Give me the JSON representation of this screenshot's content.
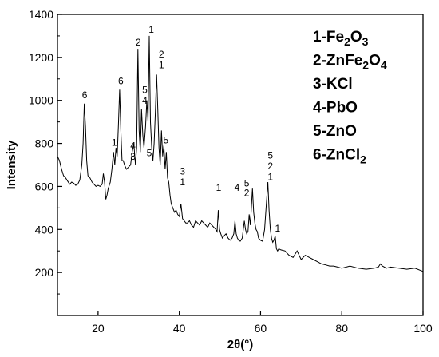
{
  "chart_data": {
    "type": "line",
    "xlabel": "2θ(°)",
    "ylabel": "Intensity",
    "xlim": [
      10,
      100
    ],
    "ylim": [
      0,
      1400
    ],
    "xticks": [
      20,
      40,
      60,
      80,
      100
    ],
    "yticks": [
      200,
      400,
      600,
      800,
      1000,
      1200,
      1400
    ],
    "grid": false,
    "legend_position": "top-right",
    "legend": [
      {
        "num": "1-",
        "base": "Fe",
        "sub1": "2",
        "mid": "O",
        "sub2": "3"
      },
      {
        "num": "2-",
        "base": "ZnFe",
        "sub1": "2",
        "mid": "O",
        "sub2": "4"
      },
      {
        "num": "3-",
        "base": "KCl",
        "sub1": "",
        "mid": "",
        "sub2": ""
      },
      {
        "num": "4-",
        "base": "PbO",
        "sub1": "",
        "mid": "",
        "sub2": ""
      },
      {
        "num": "5-",
        "base": "ZnO",
        "sub1": "",
        "mid": "",
        "sub2": ""
      },
      {
        "num": "6-",
        "base": "ZnCl",
        "sub1": "2",
        "mid": "",
        "sub2": ""
      }
    ],
    "series": [
      {
        "x": [
          10,
          10.5,
          11,
          11.5,
          12,
          12.5,
          13,
          13.5,
          14,
          14.5,
          15,
          15.5,
          16,
          16.3,
          16.6,
          16.9,
          17.2,
          17.5,
          18,
          18.5,
          19,
          19.5,
          20,
          20.5,
          21,
          21.3,
          21.6,
          21.9,
          22.2,
          22.5,
          23,
          23.4,
          23.8,
          24.1,
          24.4,
          24.7,
          25,
          25.3,
          25.6,
          25.9,
          26.2,
          26.5,
          27,
          27.5,
          28,
          28.4,
          28.8,
          29.2,
          29.5,
          29.8,
          30.1,
          30.4,
          30.7,
          31,
          31.3,
          31.7,
          32,
          32.3,
          32.6,
          32.9,
          33.2,
          33.5,
          33.8,
          34.1,
          34.4,
          34.7,
          35,
          35.3,
          35.6,
          35.9,
          36.2,
          36.5,
          36.8,
          37.1,
          37.4,
          37.7,
          38,
          38.4,
          38.8,
          39.2,
          39.6,
          40,
          40.4,
          40.8,
          41.2,
          41.6,
          42,
          42.5,
          43,
          43.5,
          44,
          44.5,
          45,
          45.5,
          46,
          46.5,
          47,
          47.5,
          48,
          48.5,
          49,
          49.3,
          49.6,
          49.9,
          50.2,
          50.6,
          51,
          51.5,
          52,
          52.5,
          53,
          53.4,
          53.7,
          54,
          54.3,
          54.6,
          55,
          55.5,
          56,
          56.3,
          56.6,
          56.9,
          57.2,
          57.5,
          58,
          58.3,
          58.6,
          58.9,
          59.2,
          59.5,
          60,
          60.5,
          61,
          61.5,
          61.8,
          62.1,
          62.4,
          62.7,
          63,
          63.3,
          63.6,
          63.9,
          64.2,
          64.5,
          65,
          66,
          67,
          68,
          69,
          70,
          71,
          72,
          73,
          74,
          75,
          76,
          77,
          78,
          79,
          80,
          82,
          84,
          86,
          88,
          89,
          89.5,
          90,
          91,
          92,
          94,
          96,
          98,
          100
        ],
        "y": [
          740,
          720,
          680,
          650,
          640,
          625,
          610,
          620,
          615,
          605,
          610,
          630,
          700,
          800,
          985,
          880,
          720,
          650,
          640,
          620,
          610,
          600,
          605,
          600,
          610,
          660,
          620,
          540,
          560,
          590,
          620,
          680,
          760,
          700,
          780,
          740,
          880,
          1050,
          860,
          720,
          720,
          700,
          680,
          690,
          700,
          760,
          800,
          700,
          780,
          1240,
          860,
          760,
          960,
          840,
          780,
          880,
          1000,
          900,
          1300,
          900,
          780,
          720,
          800,
          940,
          1120,
          960,
          780,
          700,
          860,
          740,
          790,
          680,
          760,
          640,
          620,
          560,
          520,
          500,
          480,
          490,
          470,
          460,
          520,
          450,
          440,
          430,
          430,
          440,
          420,
          410,
          440,
          430,
          420,
          440,
          430,
          420,
          410,
          430,
          420,
          410,
          400,
          390,
          490,
          400,
          380,
          360,
          370,
          380,
          360,
          350,
          360,
          380,
          440,
          380,
          360,
          350,
          345,
          360,
          440,
          400,
          380,
          390,
          470,
          420,
          590,
          480,
          430,
          400,
          390,
          360,
          350,
          345,
          400,
          540,
          620,
          490,
          400,
          360,
          340,
          350,
          370,
          310,
          300,
          310,
          305,
          300,
          280,
          270,
          300,
          260,
          280,
          270,
          260,
          250,
          240,
          235,
          230,
          230,
          225,
          220,
          230,
          220,
          215,
          220,
          225,
          240,
          230,
          220,
          225,
          220,
          215,
          220,
          205
        ]
      }
    ],
    "annotations": [
      {
        "x": 16.7,
        "y": 1010,
        "text": "6"
      },
      {
        "x": 25.6,
        "y": 1075,
        "text": "6"
      },
      {
        "x": 24.0,
        "y": 790,
        "text": "1"
      },
      {
        "x": 28.6,
        "y": 775,
        "text": "4"
      },
      {
        "x": 28.6,
        "y": 725,
        "text": "3"
      },
      {
        "x": 29.9,
        "y": 1255,
        "text": "2"
      },
      {
        "x": 31.5,
        "y": 1035,
        "text": "5"
      },
      {
        "x": 31.5,
        "y": 985,
        "text": "4"
      },
      {
        "x": 33.1,
        "y": 1315,
        "text": "1"
      },
      {
        "x": 32.6,
        "y": 740,
        "text": "5"
      },
      {
        "x": 35.6,
        "y": 1200,
        "text": "2"
      },
      {
        "x": 35.6,
        "y": 1150,
        "text": "1"
      },
      {
        "x": 36.7,
        "y": 800,
        "text": "5"
      },
      {
        "x": 40.8,
        "y": 655,
        "text": "3"
      },
      {
        "x": 40.8,
        "y": 605,
        "text": "1"
      },
      {
        "x": 49.7,
        "y": 580,
        "text": "1"
      },
      {
        "x": 54.2,
        "y": 580,
        "text": "4"
      },
      {
        "x": 56.6,
        "y": 600,
        "text": "5"
      },
      {
        "x": 56.6,
        "y": 555,
        "text": "2"
      },
      {
        "x": 62.4,
        "y": 730,
        "text": "5"
      },
      {
        "x": 62.4,
        "y": 680,
        "text": "2"
      },
      {
        "x": 62.4,
        "y": 630,
        "text": "1"
      },
      {
        "x": 64.2,
        "y": 390,
        "text": "1"
      }
    ]
  }
}
